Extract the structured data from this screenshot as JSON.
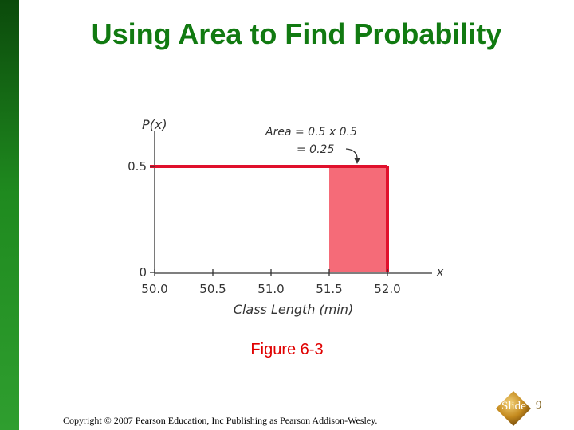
{
  "slide": {
    "title": "Using Area to Find Probability",
    "caption": "Figure 6-3",
    "copyright": "Copyright © 2007 Pearson Education, Inc Publishing as Pearson Addison-Wesley.",
    "slide_label": "Slide",
    "slide_number": "9",
    "colors": {
      "accent_green": "#117a11",
      "caption_red": "#e00000",
      "curve_red": "#e0102c",
      "shade_fill": "#f56b78"
    }
  },
  "chart_data": {
    "type": "area",
    "distribution": "uniform",
    "xlabel": "Class Length (min)",
    "ylabel": "P(x)",
    "x_axis_end_label": "x",
    "xlim": [
      50.0,
      52.0
    ],
    "ylim": [
      0,
      0.5
    ],
    "x_ticks": [
      {
        "value": 50.0,
        "label": "50.0"
      },
      {
        "value": 50.5,
        "label": "50.5"
      },
      {
        "value": 51.0,
        "label": "51.0"
      },
      {
        "value": 51.5,
        "label": "51.5"
      },
      {
        "value": 52.0,
        "label": "52.0"
      }
    ],
    "y_ticks": [
      {
        "value": 0,
        "label": "0"
      },
      {
        "value": 0.5,
        "label": "0.5"
      }
    ],
    "density": {
      "x_start": 50.0,
      "x_end": 52.0,
      "height": 0.5
    },
    "shaded_region": {
      "x_start": 51.5,
      "x_end": 52.0,
      "height": 0.5
    },
    "annotation": {
      "line1": "Area = 0.5 x 0.5",
      "line2": "= 0.25"
    },
    "grid": false
  }
}
